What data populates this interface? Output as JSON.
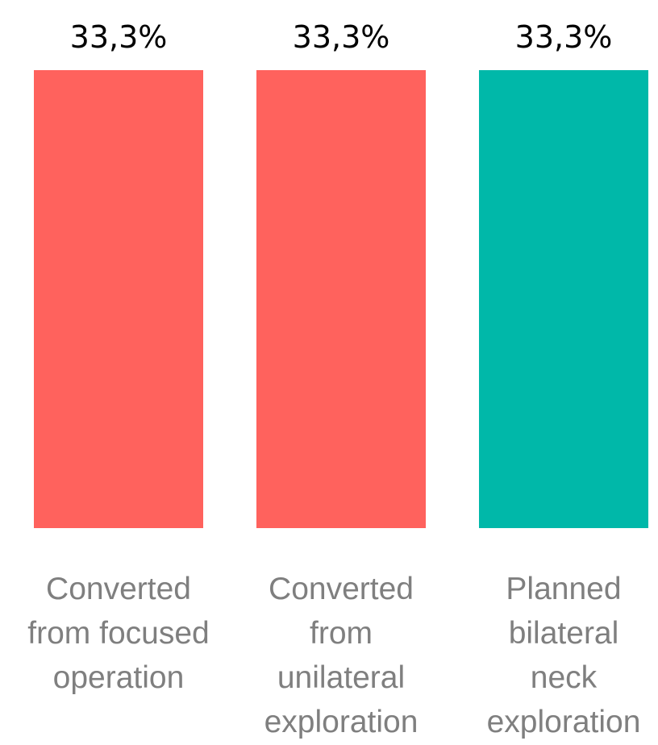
{
  "chart_data": {
    "type": "bar",
    "title": "",
    "xlabel": "",
    "ylabel": "",
    "ylim": [
      0,
      33.3
    ],
    "grid": false,
    "categories": [
      [
        "Converted",
        "from focused",
        "operation"
      ],
      [
        "Converted",
        "from",
        "unilateral",
        "exploration"
      ],
      [
        "Planned",
        "bilateral",
        "neck",
        "exploration"
      ]
    ],
    "values": [
      33.3,
      33.3,
      33.3
    ],
    "data_labels": [
      "33,3%",
      "33,3%",
      "33,3%"
    ],
    "colors": [
      "#ff625d",
      "#ff625d",
      "#00b8a9"
    ]
  }
}
